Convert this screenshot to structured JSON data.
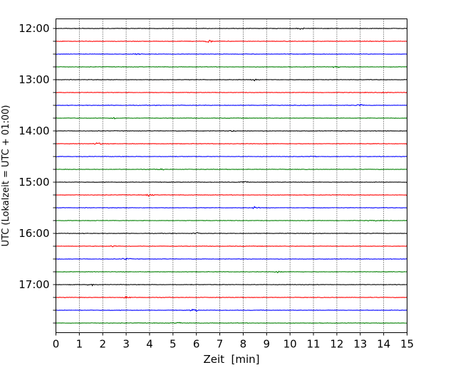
{
  "chart_data": {
    "type": "line",
    "title": "",
    "xlabel": "Zeit  [min]",
    "ylabel": "UTC (Lokalzeit = UTC + 01:00)",
    "xlim": [
      0,
      15
    ],
    "x_ticks": [
      "0",
      "1",
      "2",
      "3",
      "4",
      "5",
      "6",
      "7",
      "8",
      "9",
      "10",
      "11",
      "12",
      "13",
      "14",
      "15"
    ],
    "y_tick_labels": [
      "12:00",
      "13:00",
      "14:00",
      "15:00",
      "16:00",
      "17:00"
    ],
    "grid": {
      "x": true,
      "style": "dotted"
    },
    "trace_interval_minutes": 15,
    "trace_colors": [
      "#000000",
      "#ff0000",
      "#0000ff",
      "#007f00"
    ],
    "series": [
      {
        "start": "12:00",
        "color": "#000000",
        "peak": [
          10.5,
          0.55
        ]
      },
      {
        "start": "12:15",
        "color": "#ff0000",
        "peak": [
          6.5,
          1.0
        ]
      },
      {
        "start": "12:30",
        "color": "#0000ff",
        "peak": [
          3.5,
          0.5
        ]
      },
      {
        "start": "12:45",
        "color": "#007f00",
        "peak": [
          12.0,
          0.5
        ]
      },
      {
        "start": "13:00",
        "color": "#000000",
        "peak": [
          8.5,
          0.5
        ]
      },
      {
        "start": "13:15",
        "color": "#ff0000",
        "peak": [
          14.0,
          0.6
        ]
      },
      {
        "start": "13:30",
        "color": "#0000ff",
        "peak": [
          13.0,
          0.7
        ]
      },
      {
        "start": "13:45",
        "color": "#007f00",
        "peak": [
          2.5,
          0.5
        ]
      },
      {
        "start": "14:00",
        "color": "#000000",
        "peak": [
          7.5,
          0.5
        ]
      },
      {
        "start": "14:15",
        "color": "#ff0000",
        "peak": [
          1.8,
          0.8
        ]
      },
      {
        "start": "14:30",
        "color": "#0000ff",
        "peak": [
          11.0,
          0.5
        ]
      },
      {
        "start": "14:45",
        "color": "#007f00",
        "peak": [
          4.5,
          0.5
        ]
      },
      {
        "start": "15:00",
        "color": "#000000",
        "peak": [
          8.0,
          0.6
        ]
      },
      {
        "start": "15:15",
        "color": "#ff0000",
        "peak": [
          4.0,
          0.9
        ]
      },
      {
        "start": "15:30",
        "color": "#0000ff",
        "peak": [
          8.5,
          0.6
        ]
      },
      {
        "start": "15:45",
        "color": "#007f00",
        "peak": [
          13.5,
          0.5
        ]
      },
      {
        "start": "16:00",
        "color": "#000000",
        "peak": [
          6.0,
          0.5
        ]
      },
      {
        "start": "16:15",
        "color": "#ff0000",
        "peak": [
          2.5,
          0.6
        ]
      },
      {
        "start": "16:30",
        "color": "#0000ff",
        "peak": [
          3.0,
          0.7
        ]
      },
      {
        "start": "16:45",
        "color": "#007f00",
        "peak": [
          9.5,
          0.5
        ]
      },
      {
        "start": "17:00",
        "color": "#000000",
        "peak": [
          1.5,
          0.6
        ]
      },
      {
        "start": "17:15",
        "color": "#ff0000",
        "peak": [
          3.0,
          0.8
        ]
      },
      {
        "start": "17:30",
        "color": "#0000ff",
        "peak": [
          5.9,
          1.0
        ]
      },
      {
        "start": "17:45",
        "color": "#007f00",
        "peak": [
          5.2,
          0.6
        ]
      }
    ]
  }
}
